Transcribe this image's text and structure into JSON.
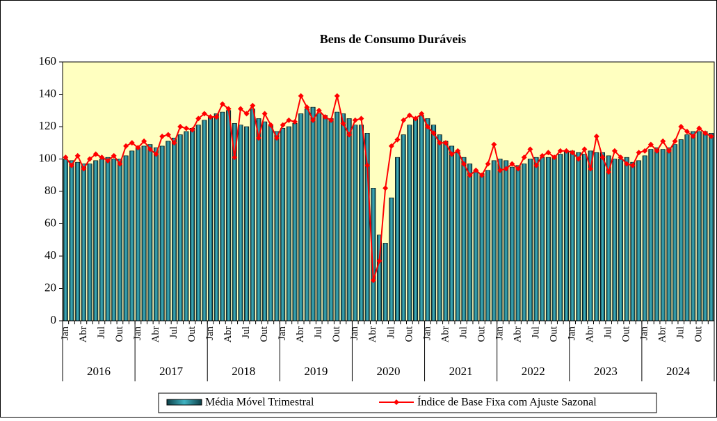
{
  "chart_data": {
    "type": "bar-line",
    "title": "Bens de Consumo Duráveis",
    "categories": [
      "Jan",
      null,
      null,
      "Abr",
      null,
      null,
      "Jul",
      null,
      null,
      "Out",
      null,
      null,
      "Jan",
      null,
      null,
      "Abr",
      null,
      null,
      "Jul",
      null,
      null,
      "Out",
      null,
      null,
      "Jan",
      null,
      null,
      "Abr",
      null,
      null,
      "Jul",
      null,
      null,
      "Out",
      null,
      null,
      "Jan",
      null,
      null,
      "Abr",
      null,
      null,
      "Jul",
      null,
      null,
      "Out",
      null,
      null,
      "Jan",
      null,
      null,
      "Abr",
      null,
      null,
      "Jul",
      null,
      null,
      "Out",
      null,
      null,
      "Jan",
      null,
      null,
      "Abr",
      null,
      null,
      "Jul",
      null,
      null,
      "Out",
      null,
      null,
      "Jan",
      null,
      null,
      "Abr",
      null,
      null,
      "Jul",
      null,
      null,
      "Out",
      null,
      null,
      "Jan",
      null,
      null,
      "Abr",
      null,
      null,
      "Jul",
      null,
      null,
      "Out",
      null,
      null,
      "Jan",
      null,
      null,
      "Abr",
      null,
      null,
      "Jul",
      null,
      null,
      "Out",
      null,
      null
    ],
    "years": [
      "2016",
      "2017",
      "2018",
      "2019",
      "2020",
      "2021",
      "2022",
      "2023",
      "2024"
    ],
    "series": [
      {
        "name": "Média Móvel Trimestral",
        "kind": "bar",
        "color": "#1f6f78",
        "values": [
          100,
          99,
          98,
          97,
          97,
          99,
          100,
          101,
          100,
          100,
          102,
          105,
          107,
          108,
          109,
          107,
          108,
          111,
          113,
          115,
          117,
          119,
          121,
          124,
          126,
          128,
          129,
          130,
          122,
          121,
          120,
          131,
          125,
          123,
          121,
          117,
          119,
          120,
          122,
          128,
          131,
          132,
          128,
          127,
          125,
          129,
          128,
          125,
          121,
          121,
          116,
          82,
          53,
          48,
          76,
          101,
          115,
          121,
          125,
          127,
          125,
          121,
          115,
          111,
          108,
          104,
          101,
          97,
          93,
          91,
          93,
          99,
          100,
          99,
          95,
          96,
          97,
          100,
          101,
          101,
          101,
          102,
          103,
          105,
          105,
          104,
          103,
          105,
          104,
          104,
          102,
          100,
          100,
          101,
          98,
          99,
          102,
          106,
          107,
          106,
          107,
          109,
          112,
          115,
          117,
          117,
          117,
          116
        ]
      },
      {
        "name": "Índice de Base Fixa com Ajuste Sazonal",
        "kind": "line",
        "color": "#ff0000",
        "values": [
          101,
          96,
          102,
          94,
          100,
          103,
          101,
          99,
          102,
          97,
          108,
          110,
          107,
          111,
          106,
          103,
          114,
          115,
          110,
          120,
          119,
          118,
          125,
          128,
          126,
          126,
          134,
          131,
          101,
          131,
          128,
          133,
          113,
          128,
          121,
          113,
          121,
          124,
          123,
          139,
          132,
          124,
          130,
          126,
          124,
          139,
          122,
          115,
          124,
          125,
          96,
          25,
          37,
          82,
          108,
          112,
          124,
          127,
          125,
          128,
          120,
          116,
          110,
          110,
          103,
          105,
          97,
          90,
          93,
          90,
          97,
          109,
          93,
          94,
          97,
          94,
          101,
          106,
          96,
          102,
          104,
          101,
          105,
          105,
          104,
          100,
          106,
          94,
          114,
          101,
          92,
          105,
          101,
          97,
          96,
          104,
          105,
          109,
          105,
          111,
          105,
          111,
          120,
          117,
          114,
          119,
          116,
          114
        ]
      }
    ],
    "ylim": [
      0,
      160
    ],
    "yticks": [
      0,
      20,
      40,
      60,
      80,
      100,
      120,
      140,
      160
    ],
    "plot_background": "#ffffc0"
  }
}
